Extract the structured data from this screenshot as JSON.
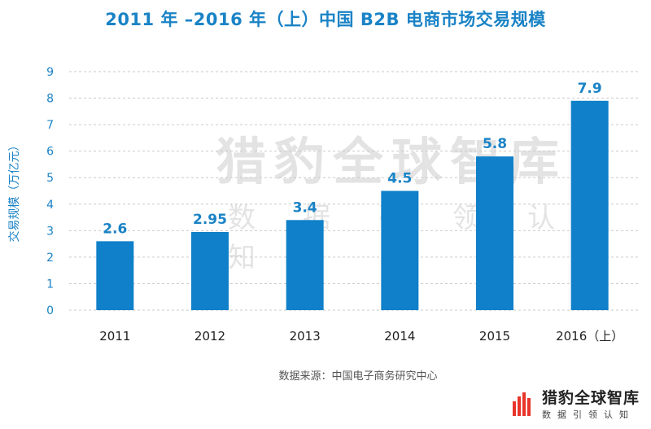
{
  "chart_data": {
    "type": "bar",
    "title": "2011 年 –2016 年（上）中国 B2B 电商市场交易规模",
    "ylabel": "交易规模（万亿元）",
    "xlabel": "",
    "categories": [
      "2011",
      "2012",
      "2013",
      "2014",
      "2015",
      "2016（上）"
    ],
    "values": [
      2.6,
      2.95,
      3.4,
      4.5,
      5.8,
      7.9
    ],
    "data_labels": [
      "2.6",
      "2.95",
      "3.4",
      "4.5",
      "5.8",
      "7.9"
    ],
    "ylim": [
      0,
      9
    ],
    "yticks": [
      "0",
      "1",
      "2",
      "3",
      "4",
      "5",
      "6",
      "7",
      "8",
      "9"
    ],
    "grid": true,
    "bar_color": "#0f80c9"
  },
  "source": "数据来源：中国电子商务研究中心",
  "watermark": {
    "main": "猎豹全球智库",
    "sub": "数据引领认知"
  },
  "logo": {
    "main": "猎豹全球智库",
    "sub": "数据引领认知",
    "icon": "cheetah-bars-icon",
    "color": "#e8352b"
  }
}
